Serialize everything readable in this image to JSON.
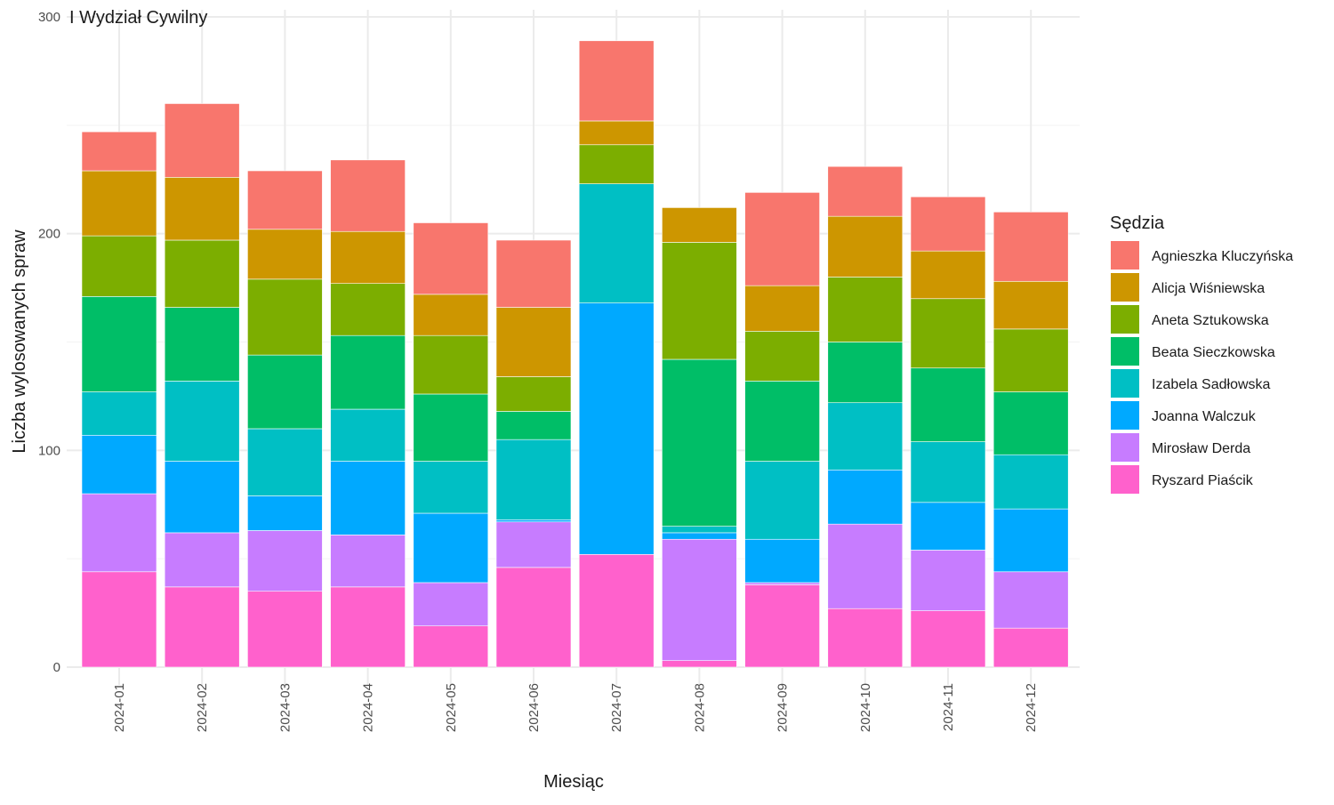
{
  "chart_data": {
    "type": "bar",
    "stacked": true,
    "title": "I Wydział Cywilny",
    "xlabel": "Miesiąc",
    "ylabel": "Liczba wylosowanych spraw",
    "ylim": [
      0,
      300
    ],
    "yticks": [
      0,
      100,
      200,
      300
    ],
    "grid": true,
    "legend_position": "right",
    "legend_title": "Sędzia",
    "categories": [
      "2024-01",
      "2024-02",
      "2024-03",
      "2024-04",
      "2024-05",
      "2024-06",
      "2024-07",
      "2024-08",
      "2024-09",
      "2024-10",
      "2024-11",
      "2024-12"
    ],
    "series": [
      {
        "name": "Agnieszka Kluczyńska",
        "color": "#F8766D",
        "values": [
          18,
          34,
          27,
          33,
          33,
          31,
          37,
          0,
          43,
          23,
          25,
          32
        ]
      },
      {
        "name": "Alicja Wiśniewska",
        "color": "#CD9600",
        "values": [
          30,
          29,
          23,
          24,
          19,
          32,
          11,
          16,
          21,
          28,
          22,
          22
        ]
      },
      {
        "name": "Aneta Sztukowska",
        "color": "#7CAE00",
        "values": [
          28,
          31,
          35,
          24,
          27,
          16,
          18,
          54,
          23,
          30,
          32,
          29
        ]
      },
      {
        "name": "Beata Sieczkowska",
        "color": "#00BE67",
        "values": [
          44,
          34,
          34,
          34,
          31,
          13,
          0,
          77,
          37,
          28,
          34,
          29
        ]
      },
      {
        "name": "Izabela Sadłowska",
        "color": "#00BFC4",
        "values": [
          20,
          37,
          31,
          24,
          24,
          37,
          55,
          3,
          36,
          31,
          28,
          25
        ]
      },
      {
        "name": "Joanna Walczuk",
        "color": "#00A9FF",
        "values": [
          27,
          33,
          16,
          34,
          32,
          1,
          116,
          3,
          20,
          25,
          22,
          29
        ]
      },
      {
        "name": "Mirosław Derda",
        "color": "#C77CFF",
        "values": [
          36,
          25,
          28,
          24,
          20,
          21,
          0,
          56,
          1,
          39,
          28,
          26
        ]
      },
      {
        "name": "Ryszard Piaścik",
        "color": "#FF61CC",
        "values": [
          44,
          37,
          35,
          37,
          19,
          46,
          52,
          3,
          38,
          27,
          26,
          18
        ]
      }
    ]
  }
}
